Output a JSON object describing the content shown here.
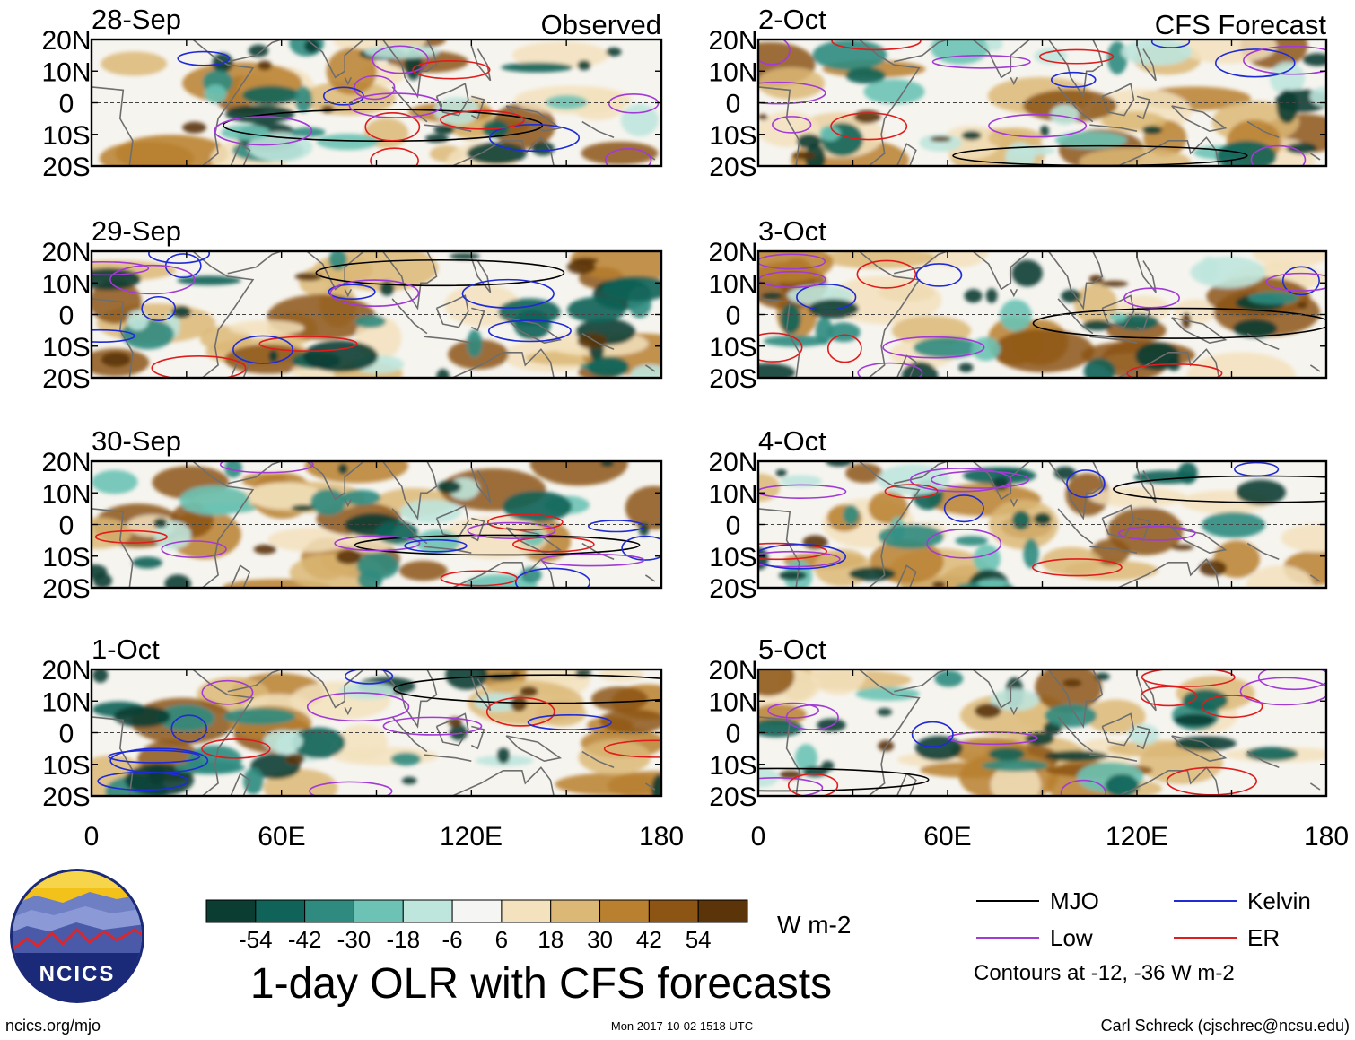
{
  "figure": {
    "title": "1-day OLR with CFS forecasts",
    "observed_label": "Observed",
    "forecast_label": "CFS Forecast",
    "footer_left": "ncics.org/mjo",
    "footer_center": "Mon 2017-10-02 1518 UTC",
    "footer_right": "Carl Schreck (cjschrec@ncsu.edu)",
    "logo_text": "NCICS"
  },
  "panels_observed": [
    {
      "date": "28-Sep"
    },
    {
      "date": "29-Sep"
    },
    {
      "date": "30-Sep"
    },
    {
      "date": "1-Oct"
    }
  ],
  "panels_forecast": [
    {
      "date": "2-Oct"
    },
    {
      "date": "3-Oct"
    },
    {
      "date": "4-Oct"
    },
    {
      "date": "5-Oct"
    }
  ],
  "axes": {
    "lat_labels": [
      "20N",
      "10N",
      "0",
      "10S",
      "20S"
    ],
    "lon_labels": [
      "0",
      "60E",
      "120E",
      "180"
    ]
  },
  "colorbar": {
    "labels": [
      "-54",
      "-42",
      "-30",
      "-18",
      "-6",
      "6",
      "18",
      "30",
      "42",
      "54"
    ],
    "colors": [
      "#0b3d33",
      "#106358",
      "#2f8b80",
      "#6cc3b5",
      "#bfe6dd",
      "#f5f5f3",
      "#f3e2bd",
      "#dcb877",
      "#b8802f",
      "#8c5514",
      "#5b3509"
    ],
    "units": "W m-2"
  },
  "legend": {
    "entries": [
      {
        "label": "MJO",
        "color": "#000000"
      },
      {
        "label": "Kelvin",
        "color": "#1f2bd6"
      },
      {
        "label": "Low",
        "color": "#a23ad6"
      },
      {
        "label": "ER",
        "color": "#e01c1c"
      }
    ],
    "note": "Contours at -12, -36 W m-2"
  }
}
